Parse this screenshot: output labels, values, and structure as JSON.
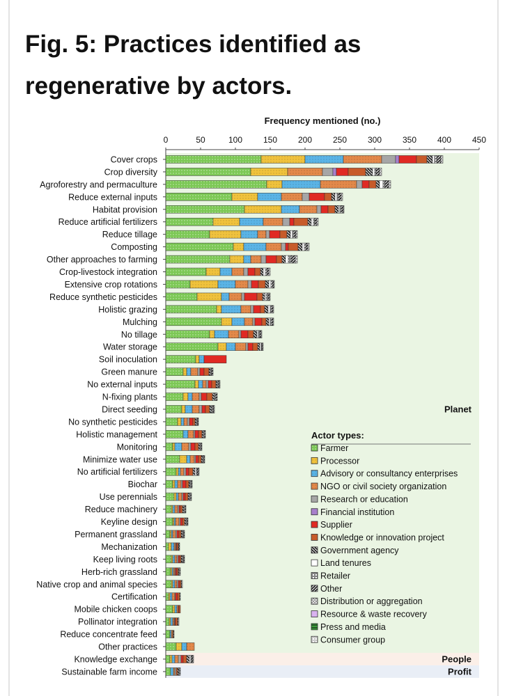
{
  "page": {
    "title": "Fig. 5: Practices identified as regenerative by actors."
  },
  "chart_data": {
    "type": "bar",
    "orientation": "horizontal",
    "stacked": true,
    "xlabel": "Frequency mentioned (no.)",
    "xlim": [
      0,
      450
    ],
    "xticks": [
      0,
      50,
      100,
      150,
      200,
      250,
      300,
      350,
      400,
      450
    ],
    "categories": [
      "Cover crops",
      "Crop diversity",
      "Agroforestry and permaculture",
      "Reduce external inputs",
      "Habitat provision",
      "Reduce artificial fertilizers",
      "Reduce tillage",
      "Composting",
      "Other approaches to farming",
      "Crop-livestock integration",
      "Extensive crop rotations",
      "Reduce synthetic pesticides",
      "Holistic grazing",
      "Mulching",
      "No tillage",
      "Water storage",
      "Soil inoculation",
      "Green manure",
      "No external inputs",
      "N-fixing plants",
      "Direct seeding",
      "No synthetic pesticides",
      "Holistic management",
      "Monitoring",
      "Minimize water use",
      "No artificial fertilizers",
      "Biochar",
      "Use perennials",
      "Reduce machinery",
      "Keyline design",
      "Permanent grassland",
      "Mechanization",
      "Keep living roots",
      "Herb-rich grassland",
      "Native crop and animal species",
      "Certification",
      "Mobile chicken coops",
      "Pollinator integration",
      "Reduce concentrate feed",
      "Other practices",
      "Knowledge exchange",
      "Sustainable farm income"
    ],
    "groups": [
      {
        "name": "Planet",
        "categories_from": 0,
        "categories_to": 39,
        "background": "#eaf5e3"
      },
      {
        "name": "People",
        "categories_from": 40,
        "categories_to": 40,
        "background": "#fbefe8"
      },
      {
        "name": "Profit",
        "categories_from": 41,
        "categories_to": 41,
        "background": "#e9eef6"
      }
    ],
    "legend": {
      "title": "Actor types:",
      "placement": "lower-right"
    },
    "series": [
      {
        "name": "Farmer",
        "color": "#7cc855",
        "pattern": "dots-light",
        "values": [
          137,
          122,
          145,
          95,
          113,
          68,
          63,
          97,
          92,
          58,
          35,
          45,
          73,
          80,
          63,
          75,
          43,
          25,
          42,
          25,
          23,
          17,
          25,
          10,
          20,
          15,
          10,
          12,
          8,
          10,
          6,
          4,
          8,
          7,
          8,
          4,
          10,
          5,
          6,
          15,
          6,
          7
        ]
      },
      {
        "name": "Processor",
        "color": "#f0c23c",
        "pattern": "dots-dark",
        "values": [
          63,
          53,
          22,
          37,
          53,
          38,
          45,
          15,
          20,
          20,
          40,
          35,
          7,
          15,
          7,
          12,
          5,
          5,
          5,
          7,
          5,
          5,
          0,
          3,
          10,
          3,
          3,
          3,
          2,
          2,
          2,
          4,
          2,
          2,
          2,
          2,
          3,
          2,
          0,
          8,
          3,
          0
        ]
      },
      {
        "name": "Advisory or consultancy enterprises",
        "color": "#5ab4e6",
        "pattern": "dots-dark",
        "values": [
          55,
          0,
          55,
          34,
          26,
          34,
          24,
          32,
          10,
          17,
          25,
          11,
          28,
          18,
          20,
          13,
          7,
          6,
          6,
          6,
          10,
          4,
          7,
          10,
          5,
          3,
          4,
          3,
          3,
          2,
          2,
          4,
          3,
          2,
          3,
          3,
          3,
          3,
          2,
          7,
          4,
          4
        ]
      },
      {
        "name": "NGO or civil society organization",
        "color": "#e3894a",
        "pattern": "dots-dark",
        "values": [
          55,
          50,
          52,
          30,
          25,
          28,
          12,
          22,
          15,
          17,
          18,
          18,
          14,
          12,
          15,
          15,
          0,
          10,
          5,
          10,
          10,
          5,
          8,
          10,
          6,
          5,
          5,
          5,
          4,
          5,
          4,
          2,
          3,
          2,
          3,
          4,
          2,
          2,
          2,
          11,
          5,
          2
        ]
      },
      {
        "name": "Research or education",
        "color": "#a6a6a6",
        "pattern": "solid",
        "values": [
          20,
          15,
          8,
          10,
          6,
          10,
          5,
          6,
          7,
          6,
          5,
          4,
          4,
          3,
          3,
          3,
          0,
          3,
          3,
          3,
          4,
          3,
          2,
          3,
          2,
          3,
          2,
          2,
          2,
          2,
          2,
          1,
          2,
          1,
          2,
          1,
          0,
          1,
          0,
          0,
          4,
          2
        ]
      },
      {
        "name": "Financial institution",
        "color": "#a880cc",
        "pattern": "solid",
        "values": [
          5,
          5,
          0,
          0,
          0,
          0,
          0,
          0,
          0,
          0,
          0,
          0,
          0,
          0,
          0,
          0,
          0,
          0,
          0,
          0,
          0,
          0,
          0,
          0,
          0,
          0,
          0,
          0,
          0,
          0,
          0,
          0,
          0,
          0,
          0,
          0,
          0,
          0,
          0,
          0,
          0,
          0
        ]
      },
      {
        "name": "Supplier",
        "color": "#e02a24",
        "pattern": "solid",
        "values": [
          25,
          17,
          10,
          22,
          10,
          6,
          15,
          4,
          15,
          10,
          10,
          18,
          10,
          10,
          10,
          7,
          32,
          6,
          5,
          8,
          5,
          5,
          5,
          6,
          4,
          4,
          5,
          3,
          2,
          3,
          3,
          1,
          2,
          2,
          2,
          3,
          1,
          1,
          0,
          0,
          3,
          0
        ]
      },
      {
        "name": "Knowledge or innovation project",
        "color": "#c75b2a",
        "pattern": "solid",
        "values": [
          15,
          25,
          10,
          10,
          10,
          20,
          10,
          14,
          8,
          8,
          10,
          8,
          6,
          6,
          8,
          7,
          0,
          7,
          6,
          8,
          6,
          3,
          5,
          5,
          4,
          6,
          4,
          4,
          3,
          3,
          3,
          2,
          2,
          2,
          2,
          3,
          2,
          3,
          1,
          0,
          5,
          2
        ]
      },
      {
        "name": "Government agency",
        "color": "#2a2a2a",
        "pattern": "hatch-back",
        "values": [
          8,
          10,
          5,
          5,
          5,
          5,
          5,
          6,
          5,
          4,
          5,
          3,
          5,
          4,
          5,
          3,
          0,
          2,
          2,
          3,
          3,
          2,
          2,
          2,
          2,
          3,
          2,
          2,
          2,
          2,
          2,
          1,
          2,
          1,
          1,
          1,
          0,
          1,
          1,
          0,
          4,
          2
        ]
      },
      {
        "name": "Land tenures",
        "color": "#ffffff",
        "pattern": "solid",
        "values": [
          3,
          3,
          5,
          3,
          2,
          3,
          3,
          3,
          4,
          3,
          3,
          2,
          3,
          2,
          2,
          2,
          0,
          1,
          1,
          1,
          1,
          1,
          1,
          1,
          1,
          2,
          1,
          1,
          1,
          1,
          1,
          0,
          1,
          1,
          1,
          0,
          0,
          1,
          0,
          0,
          2,
          1
        ]
      },
      {
        "name": "Retailer",
        "color": "#ffffff",
        "pattern": "box",
        "values": [
          3,
          2,
          3,
          2,
          2,
          2,
          2,
          2,
          4,
          2,
          2,
          3,
          2,
          2,
          2,
          1,
          0,
          1,
          1,
          1,
          1,
          1,
          1,
          1,
          1,
          1,
          1,
          1,
          1,
          1,
          1,
          0,
          1,
          0,
          0,
          0,
          0,
          0,
          0,
          0,
          1,
          0
        ]
      },
      {
        "name": "Other",
        "color": "#2a2a2a",
        "pattern": "hatch-fwd",
        "values": [
          6,
          5,
          5,
          4,
          3,
          3,
          3,
          3,
          6,
          3,
          2,
          2,
          2,
          2,
          2,
          1,
          0,
          2,
          1,
          2,
          1,
          1,
          1,
          1,
          1,
          2,
          1,
          1,
          1,
          1,
          1,
          1,
          1,
          1,
          0,
          0,
          0,
          0,
          0,
          0,
          2,
          1
        ]
      },
      {
        "name": "Distribution or aggregation",
        "color": "#888888",
        "pattern": "cross",
        "values": [
          3,
          3,
          3,
          2,
          1,
          2,
          2,
          2,
          3,
          2,
          1,
          1,
          1,
          1,
          1,
          1,
          0,
          0,
          1,
          0,
          1,
          0,
          0,
          0,
          0,
          1,
          0,
          0,
          0,
          0,
          0,
          0,
          0,
          0,
          0,
          0,
          0,
          0,
          0,
          0,
          1,
          0
        ]
      },
      {
        "name": "Resource & waste recovery",
        "color": "#d9b3ef",
        "pattern": "solid",
        "values": [
          0,
          0,
          0,
          0,
          0,
          0,
          0,
          0,
          0,
          0,
          0,
          0,
          0,
          0,
          0,
          0,
          0,
          0,
          0,
          0,
          0,
          0,
          0,
          0,
          0,
          0,
          0,
          0,
          0,
          0,
          0,
          0,
          0,
          0,
          0,
          0,
          0,
          0,
          0,
          0,
          0,
          0
        ]
      },
      {
        "name": "Press and media",
        "color": "#3aa03a",
        "pattern": "bar",
        "values": [
          0,
          0,
          0,
          0,
          0,
          0,
          0,
          0,
          0,
          0,
          0,
          0,
          0,
          0,
          0,
          0,
          0,
          0,
          0,
          0,
          0,
          0,
          0,
          0,
          0,
          0,
          0,
          0,
          0,
          0,
          0,
          0,
          0,
          0,
          0,
          0,
          0,
          0,
          0,
          0,
          0,
          0
        ]
      },
      {
        "name": "Consumer group",
        "color": "#ffffff",
        "pattern": "box-light",
        "values": [
          0,
          0,
          0,
          0,
          0,
          0,
          0,
          0,
          0,
          0,
          0,
          0,
          0,
          0,
          0,
          0,
          0,
          0,
          0,
          0,
          0,
          0,
          0,
          0,
          0,
          0,
          0,
          0,
          0,
          0,
          0,
          0,
          0,
          0,
          0,
          0,
          0,
          0,
          0,
          0,
          0,
          0
        ]
      }
    ]
  }
}
